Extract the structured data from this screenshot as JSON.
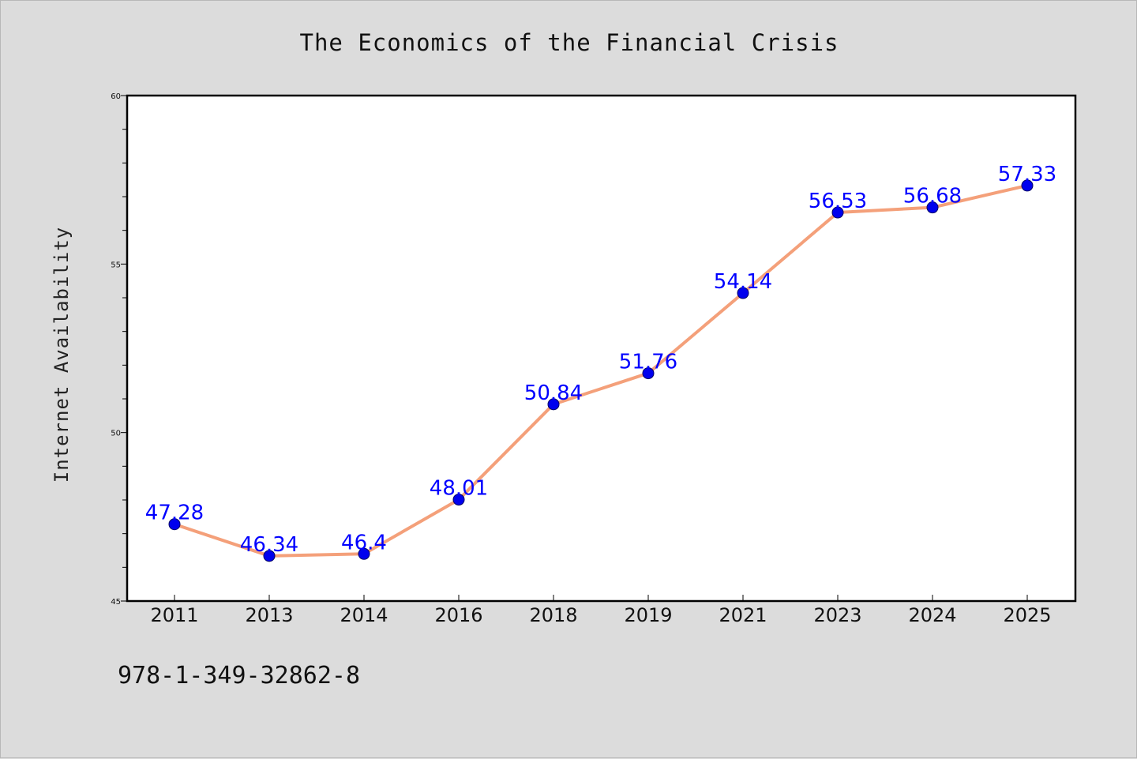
{
  "chart_data": {
    "type": "line",
    "title": "The Economics of the Financial Crisis",
    "xlabel": "",
    "ylabel": "Internet Availability",
    "categories": [
      "2011",
      "2013",
      "2014",
      "2016",
      "2018",
      "2019",
      "2021",
      "2023",
      "2024",
      "2025"
    ],
    "values": [
      47.28,
      46.34,
      46.4,
      48.01,
      50.84,
      51.76,
      54.14,
      56.53,
      56.68,
      57.33
    ],
    "data_labels": [
      "47.28",
      "46.34",
      "46.4",
      "48.01",
      "50.84",
      "51.76",
      "54.14",
      "56.53",
      "56.68",
      "57.33"
    ],
    "ylim": [
      45,
      60
    ],
    "yticks": [
      45,
      50,
      55,
      60
    ],
    "ytick_labels": [
      "45",
      "50",
      "55",
      "60"
    ],
    "grid": false,
    "legend": "none",
    "line_color": "#f4a07a",
    "marker_color": "#0000ee",
    "label_color": "#0000ff"
  },
  "annotation": "978-1-349-32862-8"
}
